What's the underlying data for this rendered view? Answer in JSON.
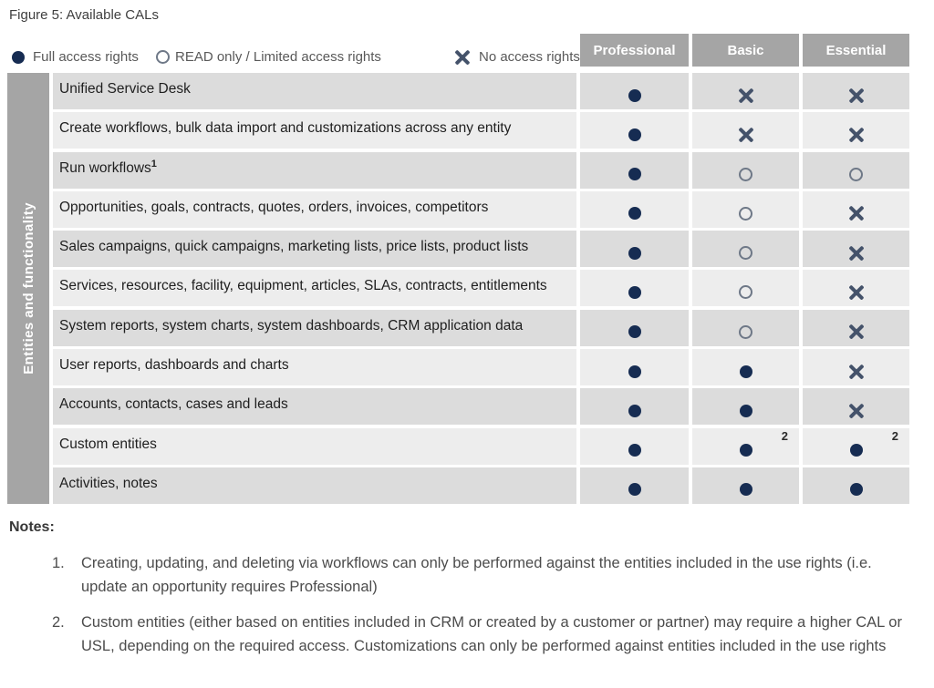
{
  "figure_title": "Figure 5: Available CALs",
  "legend": {
    "items": [
      {
        "icon": "full-access-icon",
        "symbol": "full",
        "label": "Full access rights"
      },
      {
        "icon": "read-access-icon",
        "symbol": "read",
        "label": "READ only / Limited access rights"
      },
      {
        "icon": "no-access-icon",
        "symbol": "none",
        "label": "No access rights"
      }
    ]
  },
  "table": {
    "sidebar_label": "Entities and functionality",
    "columns": [
      "Professional",
      "Basic",
      "Essential"
    ],
    "rows": [
      {
        "label": "Unified Service Desk",
        "sup": "",
        "values": [
          "full",
          "none",
          "none"
        ],
        "cell_sups": [
          "",
          "",
          ""
        ]
      },
      {
        "label": "Create workflows, bulk data import and customizations across any entity",
        "sup": "",
        "values": [
          "full",
          "none",
          "none"
        ],
        "cell_sups": [
          "",
          "",
          ""
        ]
      },
      {
        "label": "Run workflows",
        "sup": "1",
        "values": [
          "full",
          "read",
          "read"
        ],
        "cell_sups": [
          "",
          "",
          ""
        ]
      },
      {
        "label": "Opportunities, goals, contracts, quotes, orders, invoices, competitors",
        "sup": "",
        "values": [
          "full",
          "read",
          "none"
        ],
        "cell_sups": [
          "",
          "",
          ""
        ]
      },
      {
        "label": "Sales campaigns, quick campaigns, marketing lists, price lists, product lists",
        "sup": "",
        "values": [
          "full",
          "read",
          "none"
        ],
        "cell_sups": [
          "",
          "",
          ""
        ]
      },
      {
        "label": "Services, resources, facility, equipment, articles, SLAs, contracts, entitlements",
        "sup": "",
        "values": [
          "full",
          "read",
          "none"
        ],
        "cell_sups": [
          "",
          "",
          ""
        ]
      },
      {
        "label": "System reports, system charts, system dashboards, CRM application data",
        "sup": "",
        "values": [
          "full",
          "read",
          "none"
        ],
        "cell_sups": [
          "",
          "",
          ""
        ]
      },
      {
        "label": "User reports, dashboards and charts",
        "sup": "",
        "values": [
          "full",
          "full",
          "none"
        ],
        "cell_sups": [
          "",
          "",
          ""
        ]
      },
      {
        "label": "Accounts, contacts, cases and leads",
        "sup": "",
        "values": [
          "full",
          "full",
          "none"
        ],
        "cell_sups": [
          "",
          "",
          ""
        ]
      },
      {
        "label": "Custom entities",
        "sup": "",
        "values": [
          "full",
          "full",
          "full"
        ],
        "cell_sups": [
          "",
          "2",
          "2"
        ]
      },
      {
        "label": "Activities, notes",
        "sup": "",
        "values": [
          "full",
          "full",
          "full"
        ],
        "cell_sups": [
          "",
          "",
          ""
        ]
      }
    ]
  },
  "notes": {
    "heading": "Notes:",
    "items": [
      {
        "num": "1.",
        "text": "Creating, updating, and deleting via workflows can only be performed against the entities included in the use rights (i.e. update an opportunity requires Professional)"
      },
      {
        "num": "2.",
        "text": "Custom entities (either based on entities included in CRM or created by a customer or partner) may require a higher CAL or USL, depending on the required access. Customizations can only be performed against entities included in the use rights"
      }
    ]
  },
  "colors": {
    "header_bg": "#a5a5a5",
    "sidebar_bg": "#a5a5a5",
    "row_band_dark": "#dcdcdc",
    "row_band_light": "#ededed",
    "full_access_dot": "#162c52",
    "read_only_ring": "#6e7887",
    "no_access_x": "#44526a",
    "legend_text": "#595959"
  }
}
